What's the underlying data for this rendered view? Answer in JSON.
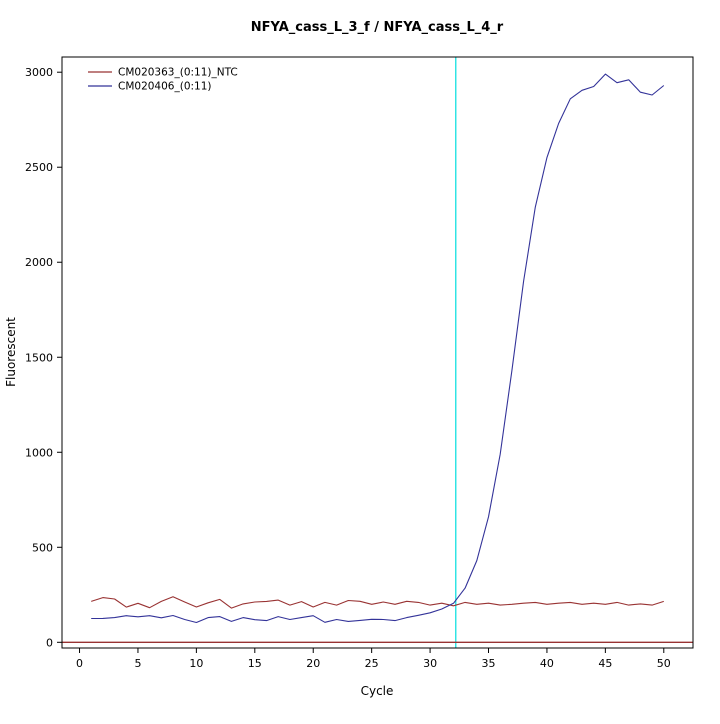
{
  "chart_data": {
    "type": "line",
    "title": "NFYA_cass_L_3_f / NFYA_cass_L_4_r",
    "xlabel": "Cycle",
    "ylabel": "Fluorescent",
    "xlim": [
      0,
      50
    ],
    "ylim": [
      0,
      3000
    ],
    "xticks": [
      0,
      5,
      10,
      15,
      20,
      25,
      30,
      35,
      40,
      45,
      50
    ],
    "yticks": [
      0,
      500,
      1000,
      1500,
      2000,
      2500,
      3000
    ],
    "grid": false,
    "legend_position": "top-left",
    "background_color": "#ffffff",
    "box_color": "#000000",
    "threshold_line": {
      "orientation": "vertical",
      "x": 32.2,
      "color": "#00dddd"
    },
    "baseline_line": {
      "orientation": "horizontal",
      "y": 0,
      "color": "#993333"
    },
    "series": [
      {
        "name": "CM020363_(0:11)_NTC",
        "color": "#993333",
        "x": [
          1,
          2,
          3,
          4,
          5,
          6,
          7,
          8,
          9,
          10,
          11,
          12,
          13,
          14,
          15,
          16,
          17,
          18,
          19,
          20,
          21,
          22,
          23,
          24,
          25,
          26,
          27,
          28,
          29,
          30,
          31,
          32,
          33,
          34,
          35,
          36,
          37,
          38,
          39,
          40,
          41,
          42,
          43,
          44,
          45,
          46,
          47,
          48,
          49,
          50
        ],
        "values": [
          215,
          235,
          228,
          185,
          205,
          182,
          215,
          240,
          212,
          186,
          208,
          226,
          180,
          202,
          212,
          215,
          222,
          196,
          214,
          186,
          210,
          196,
          220,
          216,
          200,
          212,
          200,
          216,
          210,
          196,
          206,
          192,
          210,
          200,
          206,
          196,
          200,
          206,
          210,
          200,
          206,
          210,
          200,
          206,
          200,
          210,
          196,
          202,
          196,
          215
        ]
      },
      {
        "name": "CM020406_(0:11)",
        "color": "#333399",
        "x": [
          1,
          2,
          3,
          4,
          5,
          6,
          7,
          8,
          9,
          10,
          11,
          12,
          13,
          14,
          15,
          16,
          17,
          18,
          19,
          20,
          21,
          22,
          23,
          24,
          25,
          26,
          27,
          28,
          29,
          30,
          31,
          32,
          33,
          34,
          35,
          36,
          37,
          38,
          39,
          40,
          41,
          42,
          43,
          44,
          45,
          46,
          47,
          48,
          49,
          50
        ],
        "values": [
          125,
          126,
          130,
          140,
          134,
          140,
          129,
          141,
          120,
          104,
          130,
          135,
          110,
          130,
          119,
          114,
          135,
          120,
          130,
          140,
          105,
          120,
          110,
          115,
          121,
          120,
          114,
          130,
          142,
          155,
          175,
          205,
          285,
          430,
          660,
          990,
          1430,
          1900,
          2290,
          2550,
          2730,
          2860,
          2905,
          2925,
          2990,
          2945,
          2960,
          2895,
          2880,
          2930
        ]
      }
    ]
  }
}
